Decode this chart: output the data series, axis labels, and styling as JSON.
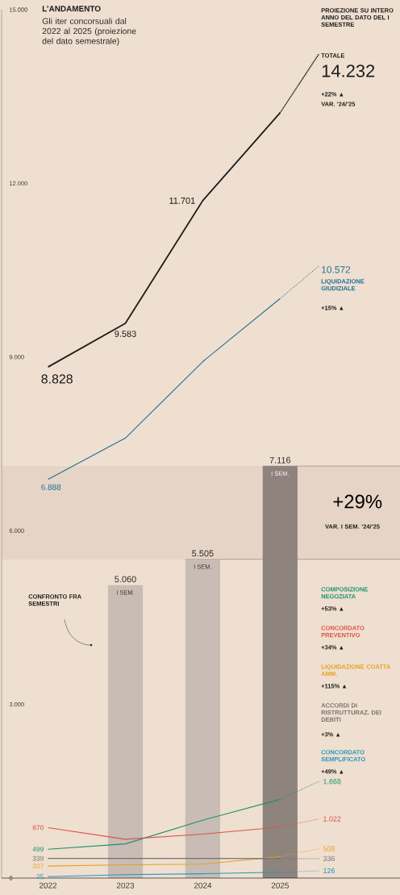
{
  "chart_data": {
    "type": "line",
    "title": "L’ANDAMENTO",
    "subtitle": "Gli iter concorsuali dal 2022 al 2025 (proiezione del dato semestrale)",
    "xlim": [
      2021.4,
      2026.55
    ],
    "xticks": [
      2022,
      2023,
      2024,
      2025
    ],
    "ylim": [
      0,
      15000
    ],
    "yticks": [
      0,
      {
        "value": 3000,
        "label": "3.000"
      },
      {
        "value": 6000,
        "label": "6.000"
      },
      {
        "value": 9000,
        "label": "9.000"
      },
      {
        "value": 12000,
        "label": "12.000"
      },
      {
        "value": 15000,
        "label": "15.000"
      }
    ],
    "grid": false,
    "series": [
      {
        "color": "#1c1c1c",
        "x": [
          2022,
          2023,
          2024,
          2025
        ],
        "values": [
          8828,
          9583,
          11701,
          13220
        ],
        "value_labels": [
          "8.828",
          "9.583",
          "11.701",
          null
        ]
      },
      {
        "name": "TOTALE",
        "color": "#1c1c1c",
        "line_style": "dotted",
        "x": [
          2025,
          2025.5
        ],
        "values": [
          13220,
          14232
        ],
        "value_labels": [
          null,
          "14.232"
        ]
      },
      {
        "color": "#1f6f94",
        "x": [
          2022,
          2023,
          2024,
          2025
        ],
        "values": [
          6888,
          7600,
          8920,
          10010
        ],
        "value_labels": [
          "6.888",
          null,
          null,
          null
        ]
      },
      {
        "name": "LIQUIDAZIONE GIUDIZIALE",
        "color": "#1f6f94",
        "line_style": "dotted",
        "x": [
          2025,
          2025.5
        ],
        "values": [
          10010,
          10572
        ],
        "value_labels": [
          null,
          "10.572"
        ]
      },
      {
        "color": "#1a9270",
        "x": [
          2022,
          2023,
          2024,
          2025
        ],
        "values": [
          499,
          590,
          1000,
          1360
        ],
        "value_labels": [
          "499",
          null,
          null,
          null
        ]
      },
      {
        "name": "COMPOSIZIONE NEGOZIATA",
        "color": "#1a9270",
        "line_style": "dotted",
        "x": [
          2025,
          2025.5
        ],
        "values": [
          1360,
          1668
        ],
        "value_labels": [
          null,
          "1.668"
        ]
      },
      {
        "color": "#d9534a",
        "x": [
          2022,
          2023,
          2024,
          2025
        ],
        "values": [
          870,
          670,
          760,
          880
        ],
        "value_labels": [
          "870",
          null,
          null,
          null
        ]
      },
      {
        "name": "CONCORDATO PREVENTIVO",
        "color": "#d9534a",
        "line_style": "dotted",
        "x": [
          2025,
          2025.5
        ],
        "values": [
          880,
          1022
        ],
        "value_labels": [
          null,
          "1.022"
        ]
      },
      {
        "color": "#e8a020",
        "x": [
          2022,
          2023,
          2024,
          2025
        ],
        "values": [
          207,
          230,
          240,
          370
        ],
        "value_labels": [
          "207",
          null,
          null,
          null
        ]
      },
      {
        "name": "LIQUIDAZIONE COATTA AMM.",
        "color": "#e8a020",
        "line_style": "dotted",
        "x": [
          2025,
          2025.5
        ],
        "values": [
          370,
          508
        ],
        "value_labels": [
          null,
          "508"
        ]
      },
      {
        "color": "#77726e",
        "x": [
          2022,
          2023,
          2024,
          2025
        ],
        "values": [
          339,
          340,
          340,
          336
        ],
        "value_labels": [
          "339",
          null,
          null,
          null
        ]
      },
      {
        "name": "ACCORDI DI RISTRUTTURAZ. DEI DEBITI",
        "color": "#77726e",
        "line_style": "dotted",
        "x": [
          2025,
          2025.5
        ],
        "values": [
          336,
          336
        ],
        "value_labels": [
          null,
          "336"
        ]
      },
      {
        "color": "#2596be",
        "x": [
          2022,
          2023,
          2024,
          2025
        ],
        "values": [
          25,
          60,
          75,
          100
        ],
        "value_labels": [
          "25",
          null,
          null,
          null
        ]
      },
      {
        "name": "CONCORDATO SEMPLIFICATO",
        "color": "#2596be",
        "line_style": "dotted",
        "x": [
          2025,
          2025.5
        ],
        "values": [
          100,
          126
        ],
        "value_labels": [
          null,
          "126"
        ]
      },
      {
        "type": "bar",
        "name": "I SEM.",
        "x": [
          2023,
          2024,
          2025
        ],
        "values": [
          5060,
          5505,
          7116
        ],
        "colors": [
          "#c8bcb4",
          "#c8bcb4",
          "#8e837d"
        ],
        "value_labels": [
          "5.060",
          "5.505",
          "7.116"
        ]
      }
    ],
    "bands": [
      {
        "axis": "y",
        "from": 5505,
        "to": 7116,
        "label": "+29%",
        "color": "#e6d5c6"
      }
    ],
    "annotations": [
      "PROIEZIONE SU INTERO ANNO DEL DATO DEL I SEMESTRE",
      "+22% ▲",
      "VAR. ’24/’25",
      "+15% ▲",
      "+53% ▲",
      "+34% ▲",
      "+115% ▲",
      "+3% ▲",
      "+49% ▲",
      "VAR. I SEM. ’24/’25",
      "CONFRONTO FRA SEMESTRI"
    ]
  }
}
